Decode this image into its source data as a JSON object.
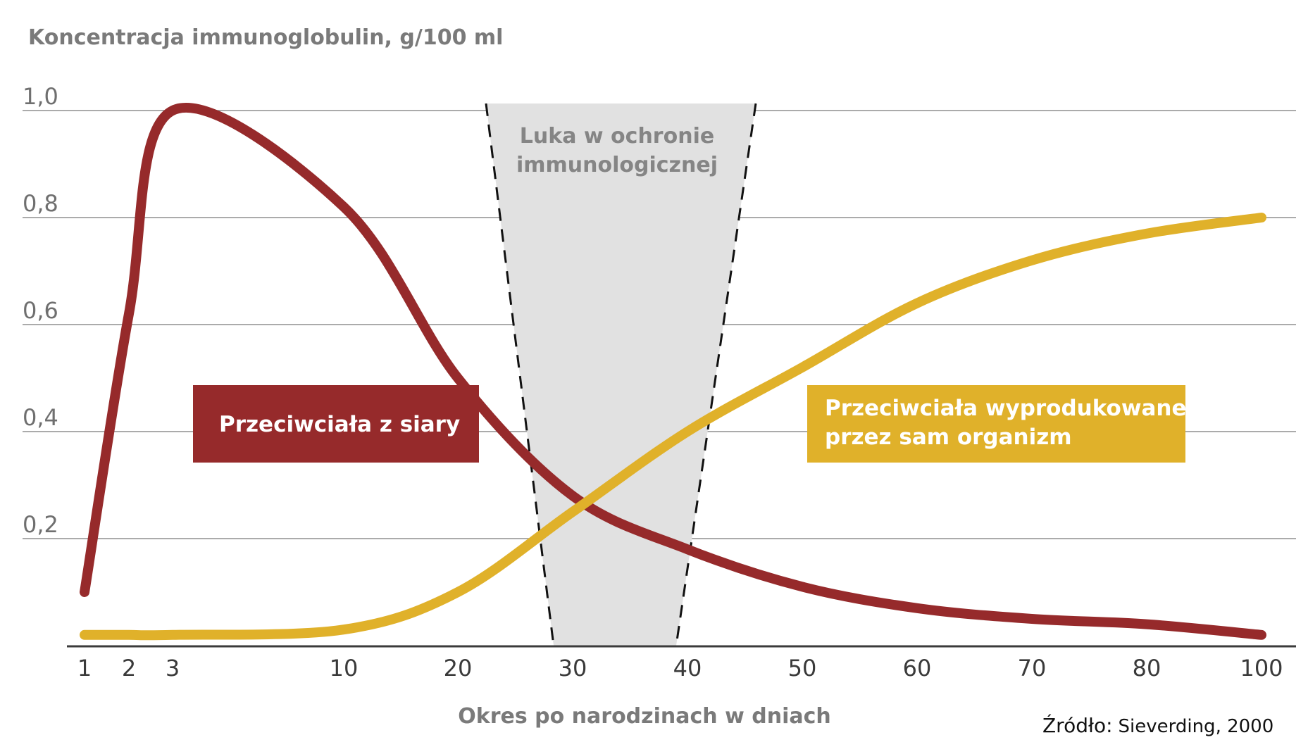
{
  "chart_data": {
    "type": "line",
    "ylabel": "Koncentracja immunoglobulin, g/100 ml",
    "xlabel": "Okres po narodzinach w dniach",
    "ylim": [
      0,
      1.0
    ],
    "y_ticks": [
      "1,0",
      "0,8",
      "0,6",
      "0,4",
      "0,2"
    ],
    "x_ticks": [
      "1",
      "2",
      "3",
      "10",
      "20",
      "30",
      "40",
      "50",
      "60",
      "70",
      "80",
      "100"
    ],
    "grid": true,
    "gap_annotation": {
      "line1": "Luka w ochronie",
      "line2": "immunologicznej"
    },
    "series": [
      {
        "name": "Przeciwciała z siary",
        "color": "#962a2b",
        "points": [
          {
            "x": "1",
            "y": 0.1
          },
          {
            "x": "2",
            "y": 0.62
          },
          {
            "x": "3",
            "y": 1.0
          },
          {
            "x": "10",
            "y": 0.82
          },
          {
            "x": "20",
            "y": 0.5
          },
          {
            "x": "30",
            "y": 0.28
          },
          {
            "x": "40",
            "y": 0.18
          },
          {
            "x": "50",
            "y": 0.11
          },
          {
            "x": "60",
            "y": 0.07
          },
          {
            "x": "70",
            "y": 0.05
          },
          {
            "x": "80",
            "y": 0.04
          },
          {
            "x": "100",
            "y": 0.02
          }
        ]
      },
      {
        "name": "Przeciwciała wyprodukowane przez sam organizm",
        "color": "#e0b12a",
        "points": [
          {
            "x": "1",
            "y": 0.02
          },
          {
            "x": "2",
            "y": 0.02
          },
          {
            "x": "3",
            "y": 0.02
          },
          {
            "x": "10",
            "y": 0.03
          },
          {
            "x": "20",
            "y": 0.1
          },
          {
            "x": "30",
            "y": 0.25
          },
          {
            "x": "40",
            "y": 0.4
          },
          {
            "x": "50",
            "y": 0.52
          },
          {
            "x": "60",
            "y": 0.64
          },
          {
            "x": "70",
            "y": 0.72
          },
          {
            "x": "80",
            "y": 0.77
          },
          {
            "x": "100",
            "y": 0.8
          }
        ]
      }
    ],
    "legend": {
      "red_label": "Przeciwciała z siary",
      "yellow_line1": "Przeciwciała wyprodukowane",
      "yellow_line2": "przez sam organizm"
    },
    "source": {
      "prefix": "Źródło:",
      "value": "Sieverding, 2000"
    },
    "colors": {
      "gap_fill": "#e1e1e1",
      "grid": "#8f8f8f",
      "axis": "#3b3b3b"
    }
  }
}
